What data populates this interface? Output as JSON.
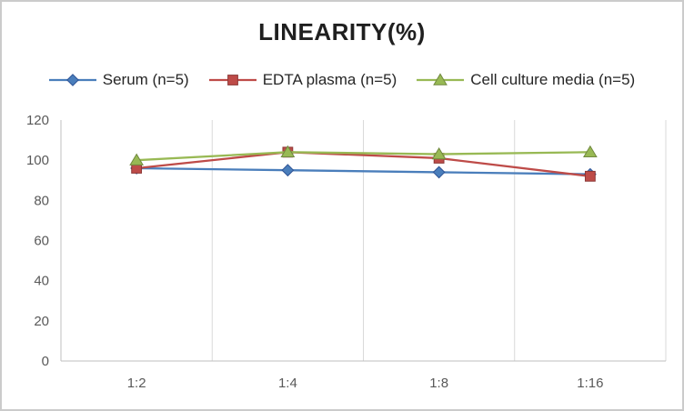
{
  "chart_data": {
    "type": "line",
    "title": "LINEARITY(%)",
    "categories": [
      "1:2",
      "1:4",
      "1:8",
      "1:16"
    ],
    "series": [
      {
        "name": "Serum (n=5)",
        "marker": "diamond",
        "color": "#4a7ebb",
        "edge": "#2e5395",
        "values": [
          96,
          95,
          94,
          93
        ]
      },
      {
        "name": "EDTA plasma (n=5)",
        "marker": "square",
        "color": "#be4b48",
        "edge": "#8c3836",
        "values": [
          96,
          104,
          101,
          92
        ]
      },
      {
        "name": "Cell culture media (n=5)",
        "marker": "triangle",
        "color": "#98b954",
        "edge": "#71893f",
        "values": [
          100,
          104,
          103,
          104
        ]
      }
    ],
    "ylim": [
      0,
      120
    ],
    "ytick_step": 20,
    "grid": "vertical-only",
    "legend_position": "top",
    "axis_color": "#bfbfbf",
    "gridline_color": "#d9d9d9",
    "tick_label_color": "#595959"
  }
}
